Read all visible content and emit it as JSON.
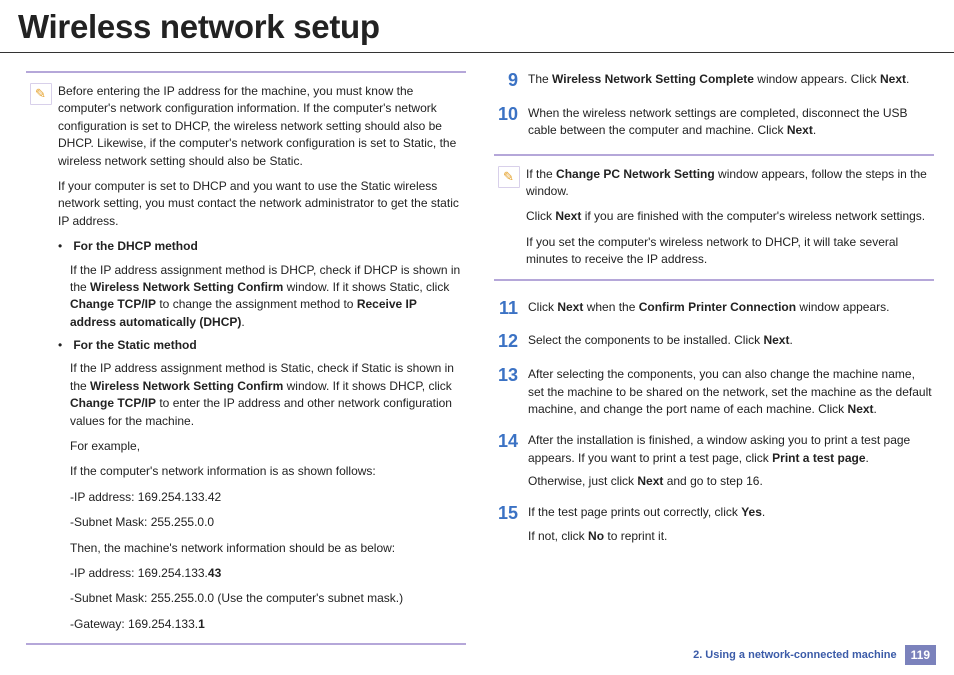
{
  "title": "Wireless network setup",
  "leftNote": {
    "p1": "Before entering the IP address for the machine, you must know the computer's network configuration information. If the computer's network configuration is set to DHCP, the wireless network setting should also be DHCP. Likewise, if the computer's network configuration is set to Static, the wireless network setting should also be Static.",
    "p2": "If your computer is set to DHCP and you want to use the Static wireless network setting, you must contact the network administrator to get the static IP address.",
    "dhcp": {
      "head": "For the DHCP method",
      "body_a": "If the IP address assignment method is DHCP, check if DHCP is shown in the ",
      "body_b": "Wireless Network Setting Confirm",
      "body_c": " window. If it shows Static, click ",
      "body_d": "Change TCP/IP",
      "body_e": " to change the assignment method to ",
      "body_f": "Receive IP address automatically (DHCP)",
      "body_g": "."
    },
    "static": {
      "head": "For the Static method",
      "body_a": "If the IP address assignment method is Static, check if Static is shown in the ",
      "body_b": "Wireless Network Setting Confirm",
      "body_c": " window. If it shows DHCP, click ",
      "body_d": "Change TCP/IP",
      "body_e": " to enter the IP address and other network configuration values for the machine.",
      "ex": "For example,",
      "l1": "If the computer's network information is as shown follows:",
      "l2": "-IP address: 169.254.133.42",
      "l3": "-Subnet Mask: 255.255.0.0",
      "l4": "Then, the machine's network information should be as below:",
      "l5a": "-IP address: 169.254.133.",
      "l5b": "43",
      "l6": "-Subnet Mask: 255.255.0.0 (Use the computer's subnet mask.)",
      "l7a": "-Gateway: 169.254.133.",
      "l7b": "1"
    }
  },
  "steps": {
    "s9": {
      "num": "9",
      "a": "The ",
      "b": "Wireless Network Setting Complete",
      "c": " window appears. Click ",
      "d": "Next",
      "e": "."
    },
    "s10": {
      "num": "10",
      "a": "When the wireless network settings are completed, disconnect the USB cable between the computer and machine. Click ",
      "b": "Next",
      "c": "."
    },
    "s11": {
      "num": "11",
      "a": "Click ",
      "b": "Next",
      "c": " when the ",
      "d": "Confirm Printer Connection",
      "e": " window appears."
    },
    "s12": {
      "num": "12",
      "a": "Select the components to be installed. Click ",
      "b": "Next",
      "c": "."
    },
    "s13": {
      "num": "13",
      "a": "After selecting the components, you can also change the machine name, set the machine to be shared on the network, set the machine as the default machine, and change the port name of each machine. Click ",
      "b": "Next",
      "c": "."
    },
    "s14": {
      "num": "14",
      "p1a": "After the installation is finished, a window asking you to print a test page appears. If you want to print a test page, click ",
      "p1b": "Print a test page",
      "p1c": ".",
      "p2a": "Otherwise, just click ",
      "p2b": "Next",
      "p2c": " and go to step 16."
    },
    "s15": {
      "num": "15",
      "p1a": "If the test page prints out correctly, click ",
      "p1b": "Yes",
      "p1c": ".",
      "p2a": "If not, click ",
      "p2b": "No",
      "p2c": " to reprint it."
    }
  },
  "rightNote": {
    "p1a": "If the ",
    "p1b": "Change PC Network Setting",
    "p1c": " window appears, follow the steps in the window.",
    "p2a": "Click ",
    "p2b": "Next",
    "p2c": " if you are finished with the computer's wireless network settings.",
    "p3": "If you set the computer's wireless network to DHCP, it will take several minutes to receive the IP address."
  },
  "footer": {
    "section": "2.  Using a network-connected machine",
    "page": "119"
  }
}
